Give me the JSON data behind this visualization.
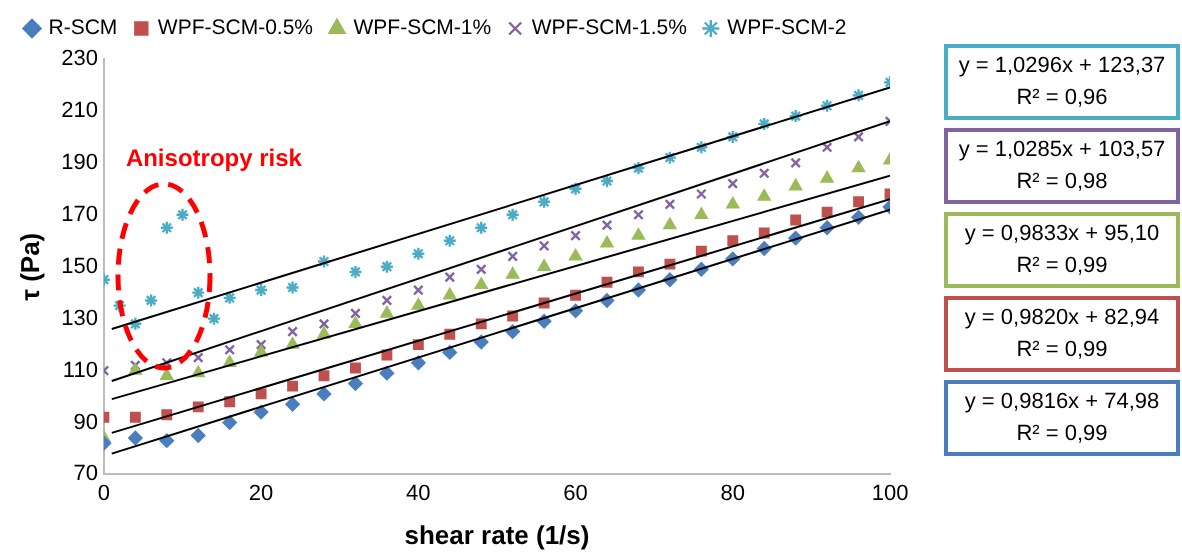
{
  "chart_data": {
    "type": "scatter",
    "xlabel": "shear rate (1/s)",
    "ylabel": "τ (Pa)",
    "xlim": [
      0,
      100
    ],
    "xticks": [
      0,
      20,
      40,
      60,
      80,
      100
    ],
    "ylim": [
      70,
      230
    ],
    "yticks": [
      70,
      90,
      110,
      130,
      150,
      170,
      190,
      210,
      230
    ],
    "grid": false,
    "legend": "top",
    "series": [
      {
        "name": "R-SCM",
        "color": "#4a7ebf",
        "marker": "diamond",
        "x": [
          0,
          4,
          8,
          12,
          16,
          20,
          24,
          28,
          32,
          36,
          40,
          44,
          48,
          52,
          56,
          60,
          64,
          68,
          72,
          76,
          80,
          84,
          88,
          92,
          96,
          100
        ],
        "values": [
          82,
          84,
          83,
          85,
          90,
          94,
          97,
          101,
          105,
          109,
          113,
          117,
          121,
          125,
          129,
          133,
          137,
          141,
          145,
          149,
          153,
          157,
          161,
          165,
          169,
          173
        ]
      },
      {
        "name": "WPF-SCM-0.5%",
        "color": "#c0504d",
        "marker": "square",
        "x": [
          0,
          4,
          8,
          12,
          16,
          20,
          24,
          28,
          32,
          36,
          40,
          44,
          48,
          52,
          56,
          60,
          64,
          68,
          72,
          76,
          80,
          84,
          88,
          92,
          96,
          100
        ],
        "values": [
          92,
          92,
          93,
          96,
          98,
          101,
          104,
          108,
          111,
          116,
          120,
          124,
          128,
          131,
          136,
          139,
          144,
          148,
          151,
          156,
          160,
          163,
          168,
          171,
          175,
          178
        ]
      },
      {
        "name": "WPF-SCM-1%",
        "color": "#9bbb59",
        "marker": "triangle",
        "x": [
          0,
          4,
          8,
          12,
          16,
          20,
          24,
          28,
          32,
          36,
          40,
          44,
          48,
          52,
          56,
          60,
          64,
          68,
          72,
          76,
          80,
          84,
          88,
          92,
          96,
          100
        ],
        "values": [
          84,
          110,
          108,
          109,
          113,
          117,
          120,
          124,
          128,
          132,
          135,
          139,
          143,
          147,
          150,
          154,
          159,
          162,
          166,
          170,
          174,
          177,
          181,
          184,
          188,
          191
        ]
      },
      {
        "name": "WPF-SCM-1.5%",
        "color": "#8064a2",
        "marker": "cross",
        "x": [
          0,
          4,
          8,
          12,
          16,
          20,
          24,
          28,
          32,
          36,
          40,
          44,
          48,
          52,
          56,
          60,
          64,
          68,
          72,
          76,
          80,
          84,
          88,
          92,
          96,
          100
        ],
        "values": [
          110,
          112,
          113,
          115,
          118,
          120,
          125,
          128,
          132,
          137,
          141,
          146,
          149,
          154,
          158,
          162,
          166,
          170,
          174,
          178,
          182,
          186,
          190,
          196,
          200,
          206
        ]
      },
      {
        "name": "WPF-SCM-2",
        "color": "#4bacc6",
        "x": [
          0,
          2,
          4,
          6,
          8,
          10,
          12,
          14,
          16,
          20,
          24,
          28,
          32,
          36,
          40,
          44,
          48,
          52,
          56,
          60,
          64,
          68,
          72,
          76,
          80,
          84,
          88,
          92,
          96,
          100
        ],
        "values": [
          145,
          135,
          128,
          137,
          165,
          170,
          140,
          130,
          138,
          141,
          142,
          152,
          148,
          150,
          155,
          160,
          165,
          170,
          175,
          180,
          183,
          188,
          192,
          196,
          200,
          205,
          208,
          212,
          216,
          221
        ]
      },
      {
        "type": "line",
        "color": "#000000",
        "marker": "none",
        "x": [
          1,
          100
        ],
        "values": [
          126,
          219
        ]
      },
      {
        "type": "line",
        "color": "#000000",
        "marker": "none",
        "x": [
          1,
          100
        ],
        "values": [
          106,
          206
        ]
      },
      {
        "type": "line",
        "color": "#000000",
        "marker": "none",
        "x": [
          1,
          100
        ],
        "values": [
          99,
          185
        ]
      },
      {
        "type": "line",
        "color": "#000000",
        "marker": "none",
        "x": [
          1,
          100
        ],
        "values": [
          86,
          176
        ]
      },
      {
        "type": "line",
        "color": "#000000",
        "marker": "none",
        "x": [
          1,
          100
        ],
        "values": [
          78,
          172
        ]
      }
    ],
    "annotations": [
      "Anisotropy risk",
      "y = 1,0296x + 123,37\nR² = 0,96",
      "y = 1,0285x + 103,57\nR² = 0,98",
      "y = 0,9833x + 95,10\nR² = 0,99",
      "y = 0,9820x + 82,94\nR² = 0,99",
      "y = 0,9816x + 74,98\nR² = 0,99"
    ]
  }
}
